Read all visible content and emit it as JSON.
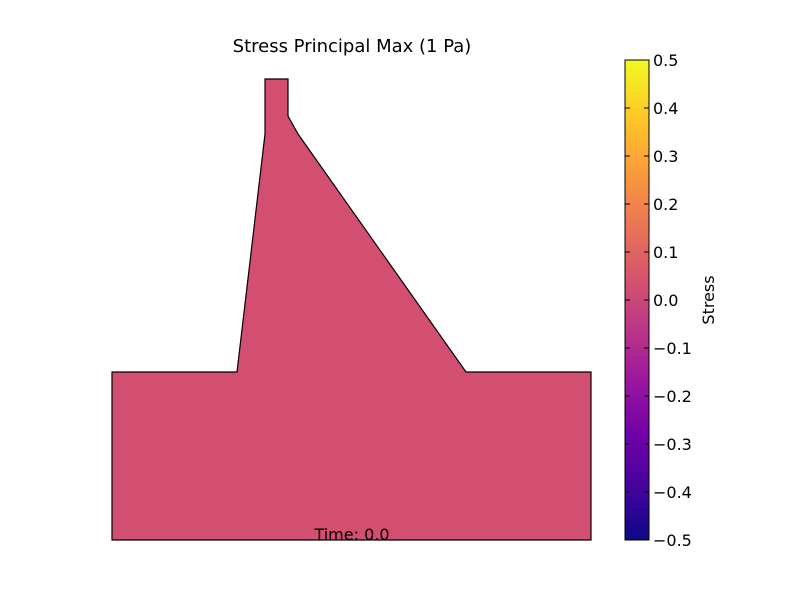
{
  "chart_data": {
    "type": "heatmap",
    "title": "Stress Principal Max (1 Pa)",
    "annotation": "Time: 0.0",
    "field_value": 0.0,
    "fill_color": "#d24f71",
    "outline_color": "#000000",
    "colorbar": {
      "label": "Stress",
      "colormap": "plasma",
      "vmin": -0.5,
      "vmax": 0.5,
      "ticks": [
        0.5,
        0.4,
        0.3,
        0.2,
        0.1,
        0.0,
        -0.1,
        -0.2,
        -0.3,
        -0.4,
        -0.5
      ],
      "tick_labels": [
        "0.5",
        "0.4",
        "0.3",
        "0.2",
        "0.1",
        "0.0",
        "−0.1",
        "−0.2",
        "−0.3",
        "−0.4",
        "−0.5"
      ],
      "stops": [
        "#0d0887",
        "#46039f",
        "#7201a8",
        "#9c179e",
        "#bd3786",
        "#d8576b",
        "#ed7953",
        "#fb9f3a",
        "#fdca26",
        "#f0f921"
      ]
    }
  }
}
